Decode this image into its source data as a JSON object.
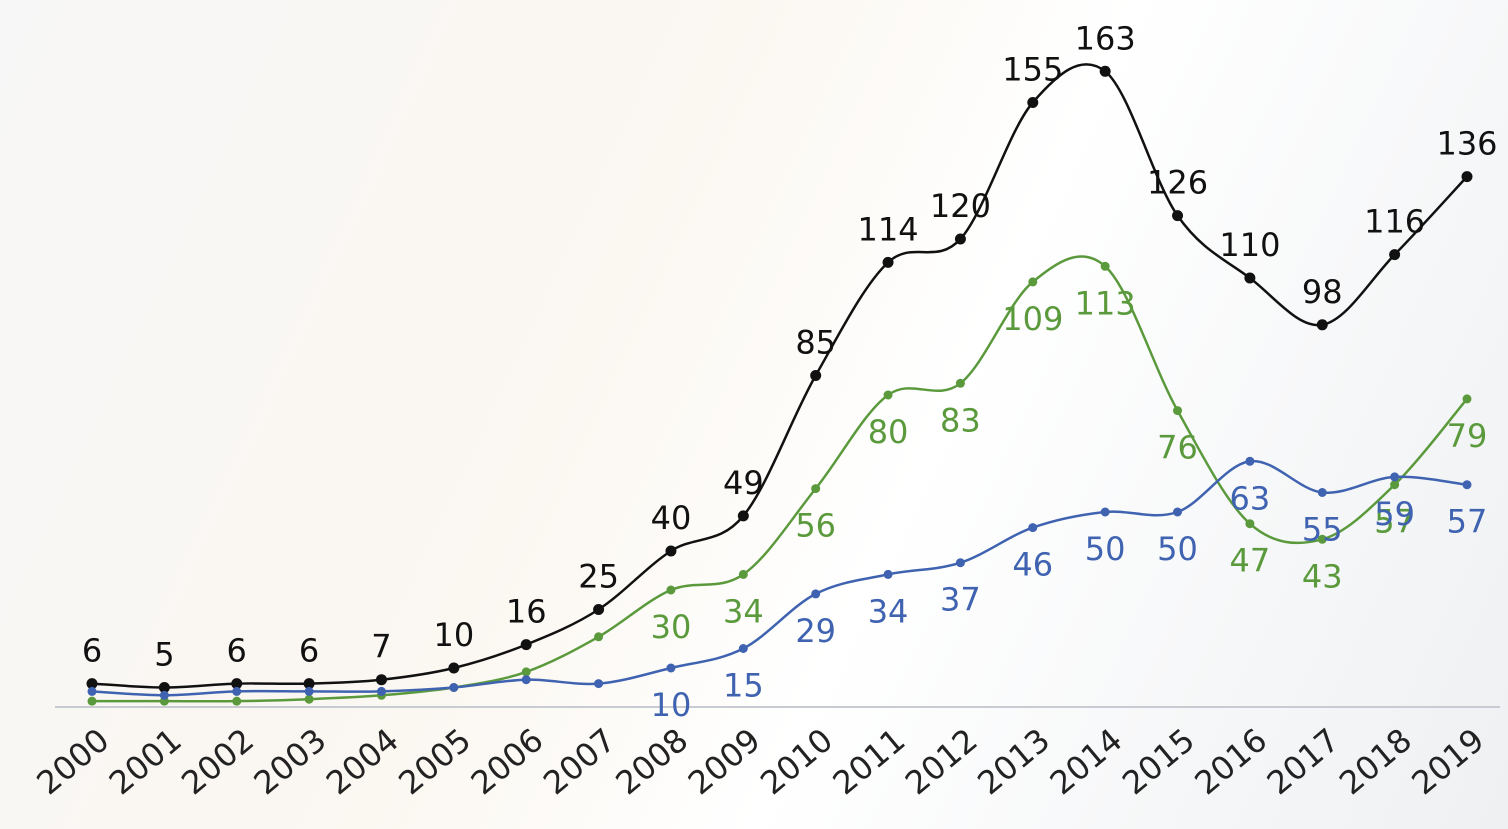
{
  "chart_data": {
    "type": "line",
    "x": [
      "2000",
      "2001",
      "2002",
      "2003",
      "2004",
      "2005",
      "2006",
      "2007",
      "2008",
      "2009",
      "2010",
      "2011",
      "2012",
      "2013",
      "2014",
      "2015",
      "2016",
      "2017",
      "2018",
      "2019"
    ],
    "series": [
      {
        "color": "#111111",
        "values": [
          6,
          5,
          6,
          6,
          7,
          10,
          16,
          25,
          40,
          49,
          85,
          114,
          120,
          155,
          163,
          126,
          110,
          98,
          116,
          136
        ]
      },
      {
        "color": "#5b9a3c",
        "values": [
          1.5,
          1.5,
          1.5,
          2,
          3,
          5,
          9,
          18,
          30,
          34,
          56,
          80,
          83,
          109,
          113,
          76,
          47,
          43,
          57,
          79
        ],
        "value_labels": [
          null,
          null,
          null,
          null,
          null,
          null,
          null,
          null,
          "30",
          "34",
          "56",
          "80",
          "83",
          "109",
          "113",
          "76",
          "47",
          "43",
          "57",
          "79"
        ]
      },
      {
        "color": "#3f63b0",
        "values": [
          4,
          3,
          4,
          4,
          4,
          5,
          7,
          6,
          10,
          15,
          29,
          34,
          37,
          46,
          50,
          50,
          63,
          55,
          59,
          57
        ],
        "value_labels": [
          null,
          null,
          null,
          null,
          null,
          null,
          null,
          null,
          "10",
          "15",
          "29",
          "34",
          "37",
          "46",
          "50",
          "50",
          "63",
          "55",
          "59",
          "57"
        ]
      }
    ],
    "ylim": [
      0,
      180
    ],
    "smooth": true
  }
}
